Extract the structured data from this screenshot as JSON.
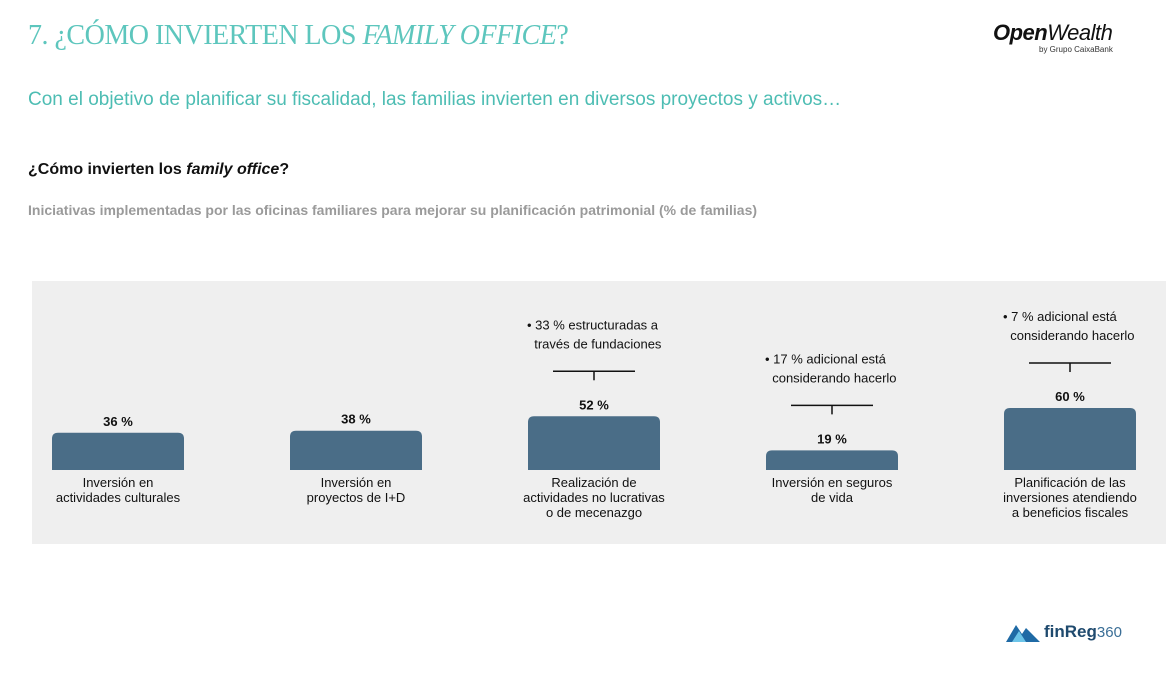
{
  "header": {
    "title_prefix": "7. ¿CÓMO INVIERTEN LOS ",
    "title_italic": "FAMILY OFFICE",
    "title_suffix": "?",
    "subtitle": "Con el objetivo de planificar su fiscalidad, las familias invierten en diversos proyectos y activos…",
    "question_prefix": "¿Cómo invierten los ",
    "question_italic": "family office",
    "question_suffix": "?",
    "chart_caption": "Iniciativas implementadas por las oficinas familiares para mejorar su planificación patrimonial (% de familias)"
  },
  "logos": {
    "openwealth_bold": "Open",
    "openwealth_rest": "Wealth",
    "openwealth_sub": "by Grupo CaixaBank",
    "finreg_name": "finReg",
    "finreg_num": "360"
  },
  "colors": {
    "title": "#5dc6bd",
    "bar": "#4a6d87",
    "chart_bg": "#efefef",
    "caption": "#9a9a9a"
  },
  "chart_data": {
    "type": "bar",
    "title": "Iniciativas implementadas por las oficinas familiares para mejorar su planificación patrimonial (% de familias)",
    "unit": "%",
    "ylim": [
      0,
      100
    ],
    "grid": false,
    "categories": [
      [
        "Inversión en",
        "actividades culturales"
      ],
      [
        "Inversión en",
        "proyectos de I+D"
      ],
      [
        "Realización de",
        "actividades no lucrativas",
        "o de mecenazgo"
      ],
      [
        "Inversión en seguros",
        "de vida"
      ],
      [
        "Planificación de las",
        "inversiones atendiendo",
        "a beneficios fiscales"
      ]
    ],
    "values": [
      36,
      38,
      52,
      19,
      60
    ],
    "value_labels": [
      "36 %",
      "38 %",
      "52 %",
      "19 %",
      "60 %"
    ],
    "annotations": [
      null,
      null,
      [
        "• 33 % estructuradas a",
        "través de fundaciones"
      ],
      [
        "• 17 % adicional está",
        "considerando hacerlo"
      ],
      [
        "• 7 % adicional está",
        "considerando hacerlo"
      ]
    ]
  }
}
